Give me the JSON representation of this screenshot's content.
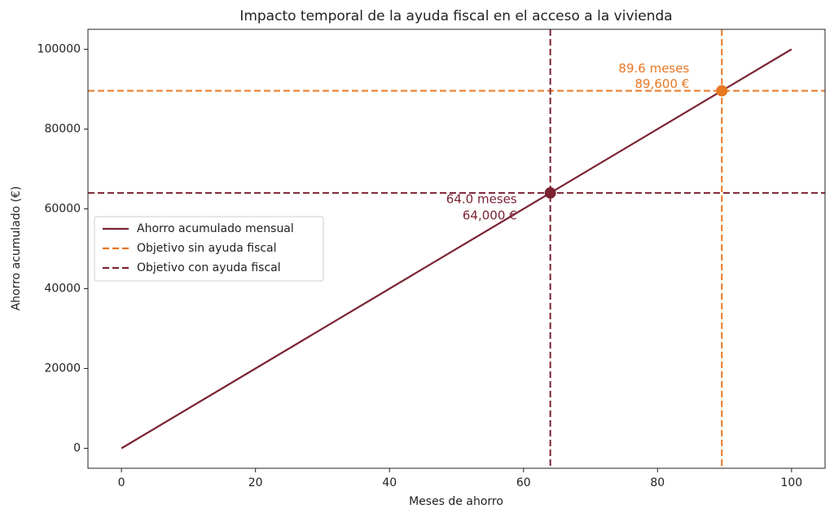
{
  "chart_data": {
    "type": "line",
    "title": "Impacto temporal de la ayuda fiscal en el acceso a la vivienda",
    "xlabel": "Meses de ahorro",
    "ylabel": "Ahorro acumulado (€)",
    "xlim": [
      -5,
      105
    ],
    "ylim": [
      -5000,
      105000
    ],
    "xticks": [
      0,
      20,
      40,
      60,
      80,
      100
    ],
    "yticks": [
      0,
      20000,
      40000,
      60000,
      80000,
      100000
    ],
    "grid": false,
    "legend_position": "center left",
    "series": [
      {
        "name": "Ahorro acumulado mensual",
        "color": "#7b2333",
        "x": [
          0,
          100
        ],
        "values": [
          0,
          100000
        ]
      }
    ],
    "reference_lines": [
      {
        "name": "Objetivo sin ayuda fiscal",
        "color": "#e87722",
        "x": 89.6,
        "y": 89600,
        "x_label": "89.6 meses",
        "y_label": "89,600 €"
      },
      {
        "name": "Objetivo con ayuda fiscal",
        "color": "#7b2333",
        "x": 64,
        "y": 64000,
        "x_label": "64.0 meses",
        "y_label": "64,000 €"
      }
    ]
  }
}
